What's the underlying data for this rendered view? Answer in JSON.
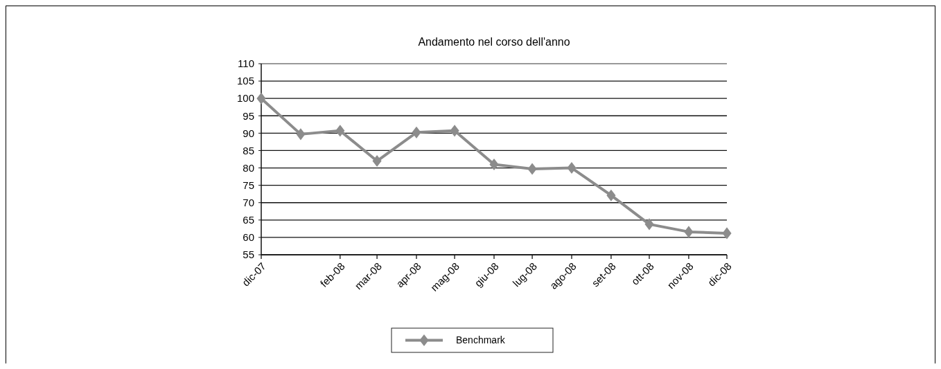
{
  "chart_data": {
    "type": "line",
    "title": "Andamento nel corso dell'anno",
    "x": [
      "2007-12",
      "2008-01",
      "2008-02",
      "2008-03",
      "2008-04",
      "2008-05",
      "2008-06",
      "2008-07",
      "2008-08",
      "2008-09",
      "2008-10",
      "2008-11",
      "2008-12"
    ],
    "series": [
      {
        "name": "Benchmark",
        "color": "#8c8c8c",
        "values": [
          100,
          89.7,
          90.7,
          82,
          90.2,
          90.7,
          81,
          79.7,
          80,
          72.1,
          63.8,
          61.6,
          61.2
        ]
      }
    ],
    "xlim": [
      "2007-12-01",
      "2008-12-01"
    ],
    "xticks": [
      {
        "value": "2007-12-01",
        "label": "dic-07"
      },
      {
        "value": "2008-02-01",
        "label": "feb-08"
      },
      {
        "value": "2008-03-01",
        "label": "mar-08"
      },
      {
        "value": "2008-04-01",
        "label": "apr-08"
      },
      {
        "value": "2008-05-01",
        "label": "mag-08"
      },
      {
        "value": "2008-06-01",
        "label": "giu-08"
      },
      {
        "value": "2008-07-01",
        "label": "lug-08"
      },
      {
        "value": "2008-08-01",
        "label": "ago-08"
      },
      {
        "value": "2008-09-01",
        "label": "set-08"
      },
      {
        "value": "2008-10-01",
        "label": "ott-08"
      },
      {
        "value": "2008-11-01",
        "label": "nov-08"
      },
      {
        "value": "2008-12-01",
        "label": "dic-08"
      }
    ],
    "ylim": [
      55,
      110
    ],
    "yticks": [
      55,
      60,
      65,
      70,
      75,
      80,
      85,
      90,
      95,
      100,
      105,
      110
    ],
    "grid": "y",
    "legend": "bottom",
    "marker": "diamond",
    "line_style": "solid"
  }
}
